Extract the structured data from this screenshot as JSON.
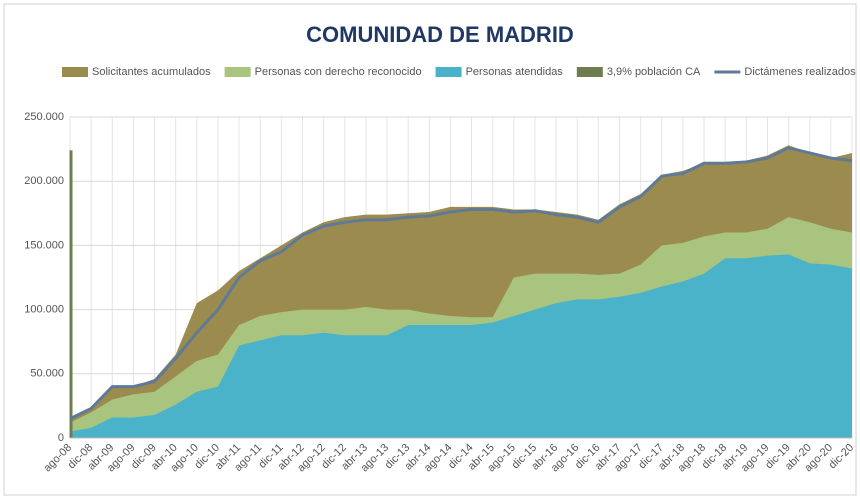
{
  "chart_data": {
    "type": "area",
    "title": "COMUNIDAD DE MADRID",
    "categories": [
      "ago-08",
      "dic-08",
      "abr-09",
      "ago-09",
      "dic-09",
      "abr-10",
      "ago-10",
      "dic-10",
      "abr-11",
      "ago-11",
      "dic-11",
      "abr-12",
      "ago-12",
      "dic-12",
      "abr-13",
      "ago-13",
      "dic-13",
      "abr-14",
      "ago-14",
      "dic-14",
      "abr-15",
      "ago-15",
      "dic-15",
      "abr-16",
      "ago-16",
      "dic-16",
      "abr-17",
      "ago-17",
      "dic-17",
      "abr-18",
      "ago-18",
      "dic-18",
      "abr-19",
      "ago-19",
      "dic-19",
      "abr-20",
      "ago-20",
      "dic-20"
    ],
    "series": [
      {
        "name": "Solicitantes acumulados",
        "color": "#9c8b4e",
        "kind": "area",
        "values": [
          16000,
          24000,
          40000,
          40000,
          46000,
          65000,
          105000,
          115000,
          130000,
          140000,
          150000,
          160000,
          168000,
          172000,
          174000,
          174000,
          175000,
          176000,
          180000,
          180000,
          180000,
          178000,
          178000,
          176000,
          174000,
          170000,
          182000,
          190000,
          205000,
          208000,
          214000,
          215000,
          216000,
          220000,
          228000,
          222000,
          218000,
          222000
        ]
      },
      {
        "name": "Personas con derecho reconocido",
        "color": "#a9c47f",
        "kind": "area",
        "values": [
          12000,
          20000,
          30000,
          34000,
          36000,
          48000,
          60000,
          65000,
          88000,
          95000,
          98000,
          100000,
          100000,
          100000,
          102000,
          100000,
          100000,
          97000,
          95000,
          94000,
          94000,
          125000,
          128000,
          128000,
          128000,
          127000,
          128000,
          135000,
          150000,
          152000,
          157000,
          160000,
          160000,
          163000,
          172000,
          168000,
          163000,
          160000
        ]
      },
      {
        "name": "Personas atendidas",
        "color": "#4bb3c9",
        "kind": "area",
        "values": [
          5000,
          8000,
          16000,
          16000,
          18000,
          26000,
          36000,
          40000,
          72000,
          76000,
          80000,
          80000,
          82000,
          80000,
          80000,
          80000,
          88000,
          88000,
          88000,
          88000,
          90000,
          95000,
          100000,
          105000,
          108000,
          108000,
          110000,
          113000,
          118000,
          122000,
          128000,
          140000,
          140000,
          142000,
          143000,
          136000,
          135000,
          132000
        ]
      },
      {
        "name": "3,9% población CA",
        "color": "#6f7d4e",
        "kind": "spike",
        "values": [
          224000,
          null,
          null,
          null,
          null,
          null,
          null,
          null,
          null,
          null,
          null,
          null,
          null,
          null,
          null,
          null,
          null,
          null,
          null,
          null,
          null,
          null,
          null,
          null,
          null,
          null,
          null,
          null,
          null,
          null,
          null,
          null,
          null,
          null,
          null,
          null,
          null,
          null
        ]
      },
      {
        "name": "Dictámenes realizados",
        "color": "#5f7a96",
        "kind": "line",
        "values": [
          15000,
          23000,
          40000,
          40000,
          44000,
          62000,
          82000,
          100000,
          125000,
          138000,
          145000,
          158000,
          165000,
          168000,
          170000,
          170000,
          172000,
          173000,
          176000,
          178000,
          178000,
          176000,
          177000,
          174000,
          172000,
          168000,
          180000,
          188000,
          204000,
          206000,
          214000,
          214000,
          215000,
          218000,
          226000,
          222000,
          218000,
          216000
        ]
      }
    ],
    "ylim": [
      0,
      250000
    ],
    "yticks": [
      0,
      {
        "value": 50000,
        "label": "50.000"
      },
      {
        "value": 100000,
        "label": "100.000"
      },
      {
        "value": 150000,
        "label": "150.000"
      },
      {
        "value": 200000,
        "label": "200.000"
      },
      {
        "value": 250000,
        "label": "250.000"
      }
    ],
    "grid": true
  }
}
